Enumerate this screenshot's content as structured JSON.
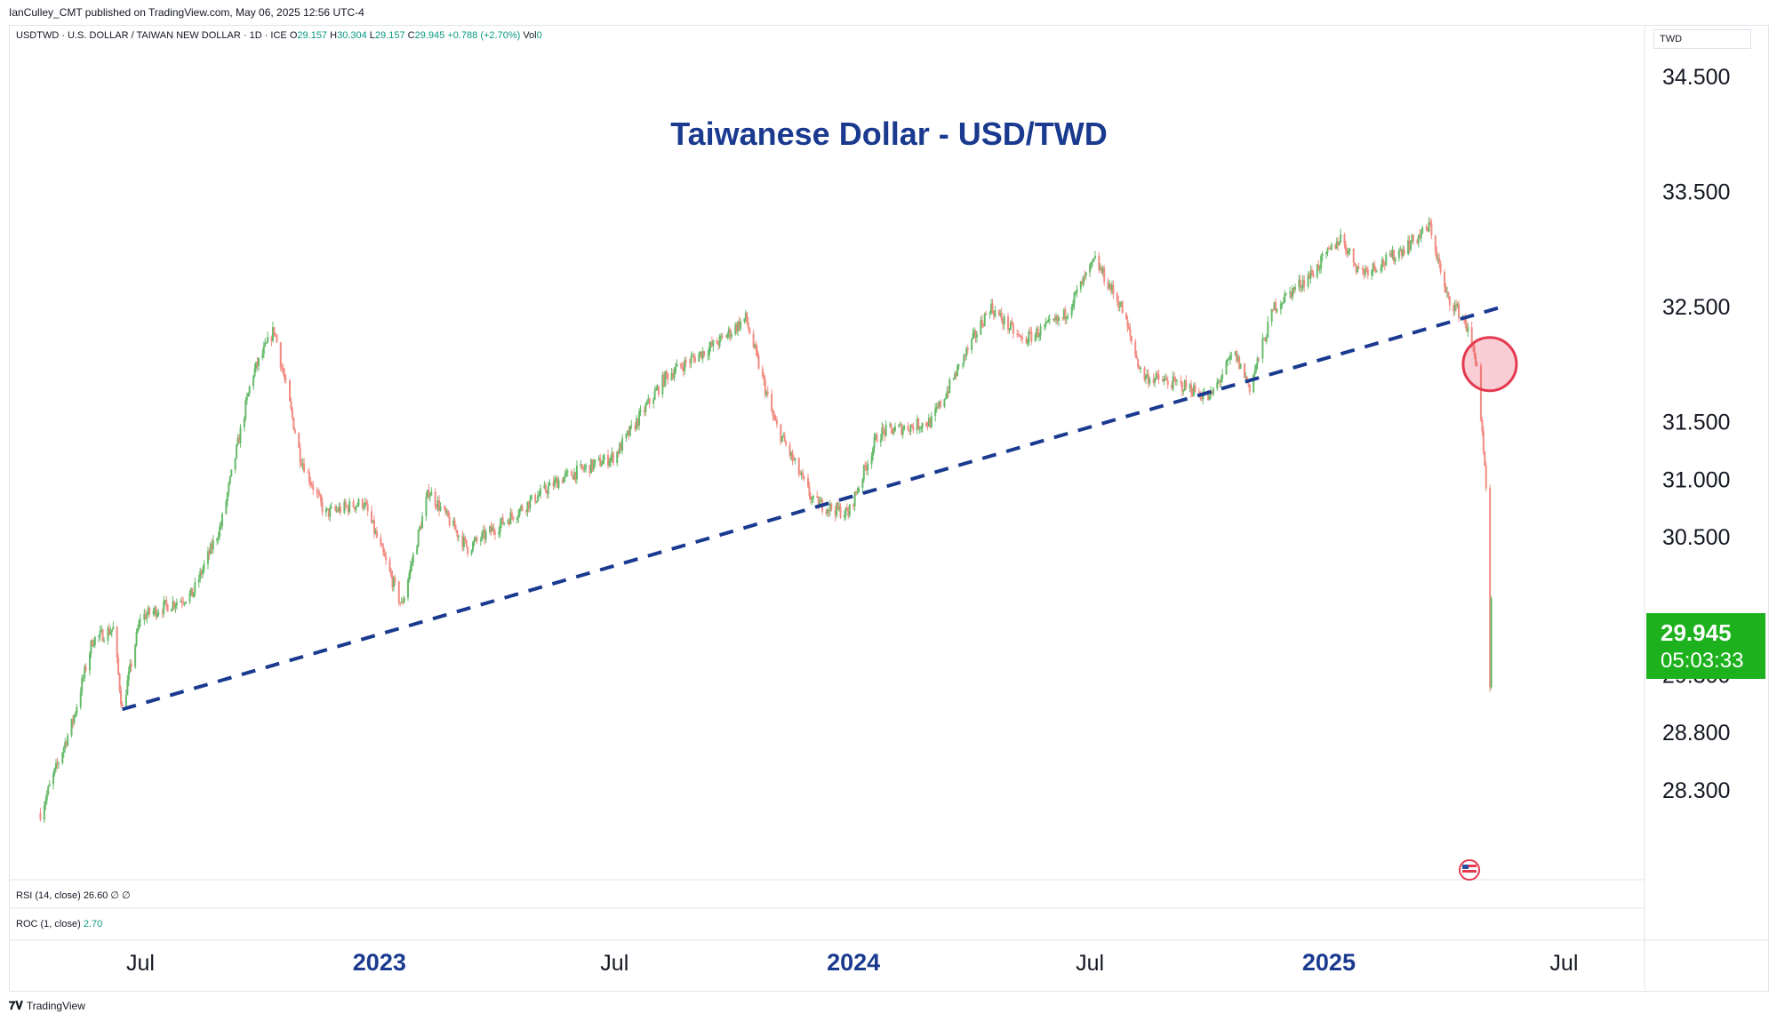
{
  "header": {
    "publisher": "IanCulley_CMT published on TradingView.com, May 06, 2025 12:56 UTC-4",
    "symbol": "USDTWD · U.S. DOLLAR / TAIWAN NEW DOLLAR · 1D · ICE",
    "open_label": "O",
    "open": "29.157",
    "high_label": "H",
    "high": "30.304",
    "low_label": "L",
    "low": "29.157",
    "close_label": "C",
    "close": "29.945",
    "change": "+0.788 (+2.70%)",
    "volume_label": "Vol",
    "volume": "0"
  },
  "currency": "TWD",
  "indicators": {
    "rsi_label": "RSI (14, close)",
    "rsi_value": "26.60",
    "rsi_extra": "∅ ∅",
    "roc_label": "ROC (1, close)",
    "roc_value": "2.70"
  },
  "price_badge": {
    "price": "29.945",
    "countdown": "05:03:33",
    "color": "#1db11d"
  },
  "footer": {
    "brand": "TradingView"
  },
  "colors": {
    "up": "#66bb6a",
    "down": "#f28b82",
    "trendline": "#1a3a8f",
    "title": "#1a3a8f",
    "circle": "#e53950"
  },
  "chart_data": {
    "type": "candlestick",
    "title": "Taiwanese Dollar - USD/TWD",
    "xlabel": "",
    "ylabel": "",
    "x_ticks": [
      "Jul",
      "2023",
      "Jul",
      "2024",
      "Jul",
      "2025",
      "Jul"
    ],
    "y_ticks": [
      "34.500",
      "33.500",
      "32.500",
      "31.500",
      "31.000",
      "30.500",
      "29.300",
      "28.800",
      "28.300"
    ],
    "ylim": [
      28.0,
      34.8
    ],
    "series_close_path": [
      [
        "2022-04-15",
        28.1
      ],
      [
        "2022-05-10",
        28.9
      ],
      [
        "2022-05-25",
        29.6
      ],
      [
        "2022-06-10",
        29.7
      ],
      [
        "2022-06-17",
        29.0
      ],
      [
        "2022-07-01",
        29.8
      ],
      [
        "2022-08-10",
        30.0
      ],
      [
        "2022-09-01",
        30.6
      ],
      [
        "2022-09-25",
        31.9
      ],
      [
        "2022-10-12",
        32.3
      ],
      [
        "2022-11-01",
        31.2
      ],
      [
        "2022-11-20",
        30.7
      ],
      [
        "2022-12-20",
        30.8
      ],
      [
        "2023-01-18",
        29.9
      ],
      [
        "2023-02-08",
        30.9
      ],
      [
        "2023-03-10",
        30.4
      ],
      [
        "2023-04-15",
        30.7
      ],
      [
        "2023-05-20",
        31.0
      ],
      [
        "2023-07-01",
        31.2
      ],
      [
        "2023-08-10",
        31.9
      ],
      [
        "2023-09-20",
        32.2
      ],
      [
        "2023-10-10",
        32.4
      ],
      [
        "2023-11-01",
        31.5
      ],
      [
        "2023-12-01",
        30.8
      ],
      [
        "2023-12-28",
        30.7
      ],
      [
        "2024-01-20",
        31.4
      ],
      [
        "2024-03-01",
        31.5
      ],
      [
        "2024-04-15",
        32.5
      ],
      [
        "2024-05-10",
        32.2
      ],
      [
        "2024-06-10",
        32.4
      ],
      [
        "2024-07-05",
        32.9
      ],
      [
        "2024-07-25",
        32.5
      ],
      [
        "2024-08-10",
        31.9
      ],
      [
        "2024-09-15",
        31.8
      ],
      [
        "2024-10-01",
        31.7
      ],
      [
        "2024-10-20",
        32.1
      ],
      [
        "2024-11-01",
        31.8
      ],
      [
        "2024-11-20",
        32.5
      ],
      [
        "2024-12-20",
        32.8
      ],
      [
        "2025-01-10",
        33.1
      ],
      [
        "2025-01-25",
        32.8
      ],
      [
        "2025-02-15",
        32.9
      ],
      [
        "2025-03-10",
        33.1
      ],
      [
        "2025-03-20",
        33.2
      ],
      [
        "2025-04-01",
        32.6
      ],
      [
        "2025-04-15",
        32.4
      ],
      [
        "2025-04-25",
        32.0
      ],
      [
        "2025-05-02",
        30.9
      ],
      [
        "2025-05-05",
        29.16
      ],
      [
        "2025-05-06",
        29.945
      ]
    ],
    "trendline": [
      [
        "2022-06-17",
        29.0
      ],
      [
        "2025-05-15",
        32.5
      ]
    ],
    "highlight_circle": [
      "2025-04-28",
      32.0
    ]
  }
}
